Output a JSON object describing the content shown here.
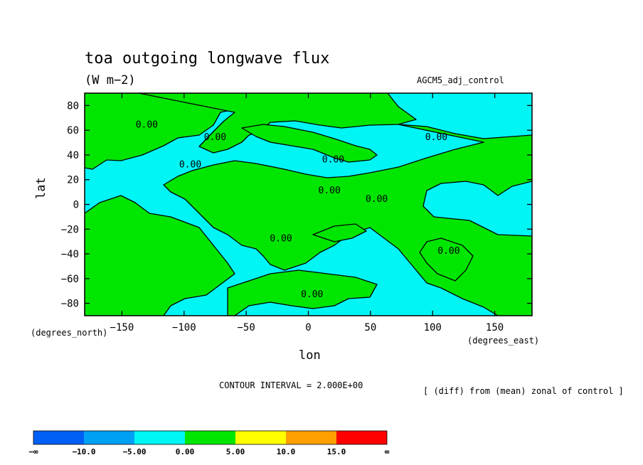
{
  "chart_data": {
    "type": "contour",
    "title": "toa outgoing longwave flux",
    "units": "(W m−2)",
    "experiment": "AGCM5_adj_control",
    "xlabel": "lon",
    "ylabel": "lat",
    "x_unit_label": "(degrees_east)",
    "y_unit_label": "(degrees_north)",
    "xlim": [
      -180,
      180
    ],
    "ylim": [
      -90,
      90
    ],
    "x_ticks": [
      -150,
      -100,
      -50,
      0,
      50,
      100,
      150
    ],
    "y_ticks": [
      80,
      60,
      40,
      20,
      0,
      -20,
      -40,
      -60,
      -80
    ],
    "x_tick_labels": [
      "−150",
      "−100",
      "−50",
      "0",
      "50",
      "100",
      "150"
    ],
    "y_tick_labels": [
      "80",
      "60",
      "40",
      "20",
      "0",
      "−20",
      "−40",
      "−60",
      "−80"
    ],
    "contour_interval_text": "CONTOUR INTERVAL = 2.000E+00",
    "description_text": "[ (diff) from (mean) zonal of control ]",
    "contour_labels": [
      {
        "text": "0.00",
        "lon": -130,
        "lat": 62
      },
      {
        "text": "0.00",
        "lon": -75,
        "lat": 52
      },
      {
        "text": "0.00",
        "lon": -95,
        "lat": 30
      },
      {
        "text": "0.00",
        "lon": 20,
        "lat": 34
      },
      {
        "text": "0.00",
        "lon": 103,
        "lat": 52
      },
      {
        "text": "0.00",
        "lon": 17,
        "lat": 9
      },
      {
        "text": "0.00",
        "lon": 55,
        "lat": 2
      },
      {
        "text": "0.00",
        "lon": -22,
        "lat": -30
      },
      {
        "text": "0.00",
        "lon": 113,
        "lat": -40
      },
      {
        "text": "0.00",
        "lon": 3,
        "lat": -75
      }
    ],
    "legend": {
      "labels": [
        "−∞",
        "−10.0",
        "−5.00",
        "0.00",
        "5.00",
        "10.0",
        "15.0",
        "∞"
      ],
      "colors": [
        "#005ff5",
        "#00a0f5",
        "#00f5f5",
        "#00e600",
        "#ffff00",
        "#ffa000",
        "#ff0000"
      ]
    },
    "fill_colors": {
      "negative": "#00f5f5",
      "positive": "#00e600"
    }
  }
}
